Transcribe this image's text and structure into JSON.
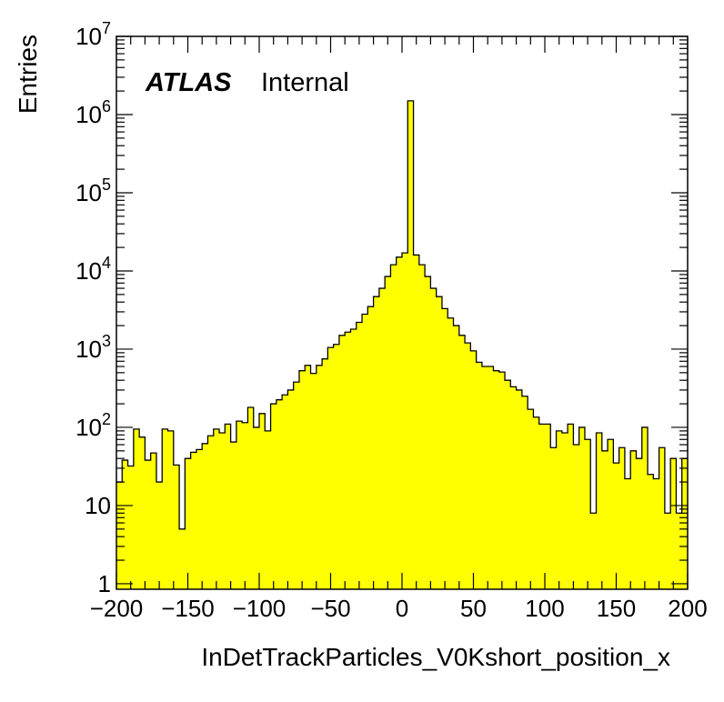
{
  "chart_data": {
    "type": "histogram",
    "title": "",
    "xlabel": "InDetTrackParticles_V0Kshort_position_x",
    "ylabel": "Entries",
    "xlim": [
      -200,
      200
    ],
    "ylim": [
      0.85,
      10000000
    ],
    "yscale": "log",
    "fill_color": "#ffff00",
    "line_color": "#000000",
    "x_ticks": [
      -200,
      -150,
      -100,
      -50,
      0,
      50,
      100,
      150,
      200
    ],
    "x_tick_labels": [
      "−200",
      "−150",
      "−100",
      "−50",
      "0",
      "50",
      "100",
      "150",
      "200"
    ],
    "y_ticks": [
      {
        "value": 1,
        "base": "1",
        "exp": ""
      },
      {
        "value": 10,
        "base": "10",
        "exp": ""
      },
      {
        "value": 100,
        "base": "10",
        "exp": "2"
      },
      {
        "value": 1000,
        "base": "10",
        "exp": "3"
      },
      {
        "value": 10000,
        "base": "10",
        "exp": "4"
      },
      {
        "value": 100000,
        "base": "10",
        "exp": "5"
      },
      {
        "value": 1000000,
        "base": "10",
        "exp": "6"
      },
      {
        "value": 10000000,
        "base": "10",
        "exp": "7"
      }
    ],
    "bin_edges": {
      "start": -200,
      "width": 4
    },
    "values": [
      20,
      38,
      32,
      95,
      75,
      38,
      47,
      20,
      95,
      90,
      33,
      5,
      40,
      48,
      52,
      62,
      78,
      95,
      85,
      110,
      65,
      120,
      115,
      180,
      100,
      150,
      90,
      200,
      225,
      260,
      300,
      380,
      530,
      620,
      490,
      620,
      750,
      1050,
      1150,
      1500,
      1650,
      1800,
      2200,
      2800,
      3500,
      4700,
      6000,
      8500,
      12000,
      15000,
      17000,
      1500000,
      16000,
      12000,
      8500,
      6000,
      4700,
      3300,
      2500,
      2000,
      1500,
      1200,
      950,
      680,
      600,
      600,
      530,
      510,
      400,
      330,
      300,
      250,
      170,
      135,
      110,
      110,
      55,
      90,
      85,
      110,
      60,
      100,
      70,
      8,
      85,
      50,
      70,
      35,
      55,
      22,
      50,
      40,
      100,
      25,
      22,
      55,
      8,
      40,
      8,
      40
    ],
    "annotations": [
      {
        "bold": "ATLAS",
        "normal": "Internal"
      }
    ]
  }
}
